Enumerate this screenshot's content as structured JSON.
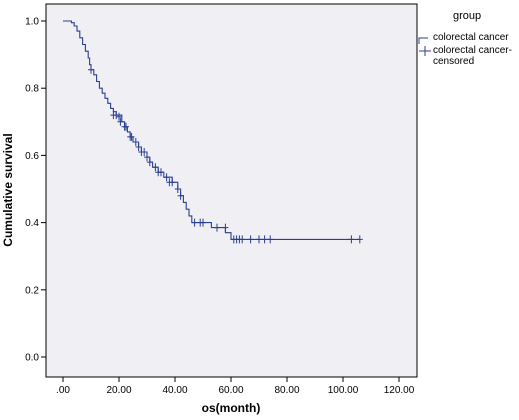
{
  "chart_data": {
    "type": "line",
    "title": "",
    "xlabel": "os(month)",
    "ylabel": "Cumulative survival",
    "xlim": [
      0,
      125
    ],
    "ylim": [
      0,
      1.05
    ],
    "x_ticks": [
      0,
      20,
      40,
      60,
      80,
      100,
      120
    ],
    "x_tick_labels": [
      ".00",
      "20.00",
      "40.00",
      "60.00",
      "80.00",
      "100.00",
      "120.00"
    ],
    "y_ticks": [
      0.0,
      0.2,
      0.4,
      0.6,
      0.8,
      1.0
    ],
    "y_tick_labels": [
      "0.0",
      "0.2",
      "0.4",
      "0.6",
      "0.8",
      "1.0"
    ],
    "grid": false,
    "background_color": "#f0eff4",
    "line_color": "#2b3f8f",
    "legend": {
      "placement": "right-outside",
      "title": "group",
      "entries": [
        "colorectal cancer",
        "colorectal cancer-\ncensored"
      ]
    },
    "series": [
      {
        "name": "colorectal cancer",
        "step": true,
        "points": [
          [
            0,
            1.0
          ],
          [
            3,
            0.995
          ],
          [
            4,
            0.985
          ],
          [
            5,
            0.97
          ],
          [
            6,
            0.95
          ],
          [
            7,
            0.93
          ],
          [
            8,
            0.91
          ],
          [
            9,
            0.89
          ],
          [
            9.5,
            0.87
          ],
          [
            10,
            0.855
          ],
          [
            11,
            0.84
          ],
          [
            12,
            0.82
          ],
          [
            13,
            0.8
          ],
          [
            14,
            0.785
          ],
          [
            15,
            0.77
          ],
          [
            16,
            0.755
          ],
          [
            17,
            0.74
          ],
          [
            18,
            0.73
          ],
          [
            19,
            0.72
          ],
          [
            21,
            0.7
          ],
          [
            22,
            0.685
          ],
          [
            23,
            0.67
          ],
          [
            24,
            0.655
          ],
          [
            25,
            0.64
          ],
          [
            27,
            0.625
          ],
          [
            28,
            0.61
          ],
          [
            30,
            0.595
          ],
          [
            31,
            0.58
          ],
          [
            32,
            0.565
          ],
          [
            34,
            0.55
          ],
          [
            36,
            0.535
          ],
          [
            39,
            0.52
          ],
          [
            41,
            0.5
          ],
          [
            42,
            0.48
          ],
          [
            43,
            0.46
          ],
          [
            44,
            0.44
          ],
          [
            45,
            0.42
          ],
          [
            46,
            0.4
          ],
          [
            53,
            0.385
          ],
          [
            58,
            0.37
          ],
          [
            60,
            0.35
          ],
          [
            106,
            0.35
          ]
        ]
      }
    ],
    "censored": [
      [
        10,
        0.855
      ],
      [
        18,
        0.72
      ],
      [
        19,
        0.72
      ],
      [
        20,
        0.715
      ],
      [
        20.5,
        0.7
      ],
      [
        22,
        0.685
      ],
      [
        22.5,
        0.685
      ],
      [
        24,
        0.655
      ],
      [
        24.5,
        0.655
      ],
      [
        26,
        0.64
      ],
      [
        27,
        0.625
      ],
      [
        28,
        0.61
      ],
      [
        29,
        0.61
      ],
      [
        30,
        0.595
      ],
      [
        31,
        0.58
      ],
      [
        33,
        0.565
      ],
      [
        34,
        0.55
      ],
      [
        35,
        0.55
      ],
      [
        37,
        0.535
      ],
      [
        38,
        0.52
      ],
      [
        39,
        0.52
      ],
      [
        41,
        0.5
      ],
      [
        42,
        0.48
      ],
      [
        47,
        0.4
      ],
      [
        49,
        0.4
      ],
      [
        50,
        0.4
      ],
      [
        55,
        0.385
      ],
      [
        58,
        0.385
      ],
      [
        61,
        0.35
      ],
      [
        62,
        0.35
      ],
      [
        63,
        0.35
      ],
      [
        64,
        0.35
      ],
      [
        67,
        0.35
      ],
      [
        70,
        0.35
      ],
      [
        72,
        0.35
      ],
      [
        74,
        0.35
      ],
      [
        103,
        0.35
      ],
      [
        106,
        0.35
      ]
    ]
  }
}
